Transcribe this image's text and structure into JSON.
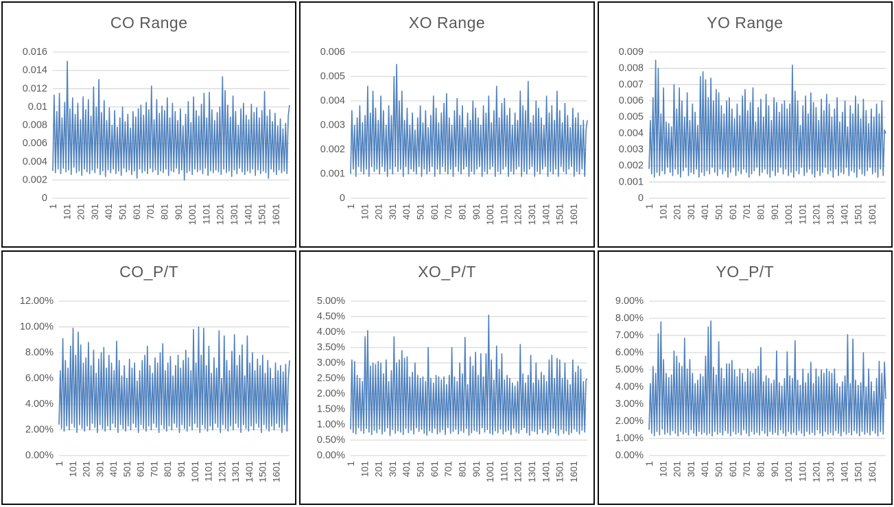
{
  "styles": {
    "series_color": "#4F81BD",
    "gridline_color": "#D9D9D9",
    "axis_text_color": "#595959",
    "title_color": "#595959",
    "panel_border_color": "#0a0a0a",
    "background": "#ffffff"
  },
  "chart_data": [
    {
      "type": "line",
      "title": "CO Range",
      "ylim": [
        0,
        0.016
      ],
      "ytick_step": 0.002,
      "ytick_labels": [
        "0.016",
        "0.014",
        "0.012",
        "0.01",
        "0.008",
        "0.006",
        "0.004",
        "0.002",
        "0"
      ],
      "x_labels": [
        "1",
        "101",
        "201",
        "301",
        "401",
        "501",
        "601",
        "701",
        "801",
        "901",
        "1001",
        "1101",
        "1201",
        "1301",
        "1401",
        "1501",
        "1601"
      ],
      "x_label_start": 1,
      "x_label_interval": 100,
      "x_total": 1700,
      "value_unit": 0.0001,
      "y_max_units": 160,
      "values": [
        30,
        113,
        28,
        95,
        32,
        115,
        27,
        88,
        33,
        105,
        29,
        150,
        31,
        98,
        26,
        110,
        34,
        92,
        28,
        104,
        30,
        86,
        25,
        111,
        32,
        97,
        29,
        108,
        27,
        90,
        31,
        122,
        28,
        100,
        33,
        130,
        26,
        94,
        30,
        107,
        24,
        85,
        31,
        99,
        28,
        80,
        32,
        96,
        27,
        78,
        30,
        88,
        25,
        100,
        33,
        84,
        29,
        92,
        31,
        77,
        26,
        95,
        30,
        89,
        22,
        98,
        32,
        102,
        28,
        91,
        30,
        105,
        27,
        97,
        33,
        123,
        29,
        86,
        31,
        108,
        26,
        93,
        30,
        101,
        28,
        96,
        32,
        110,
        25,
        88,
        30,
        104,
        29,
        95,
        33,
        85,
        27,
        98,
        31,
        79,
        20,
        92,
        28,
        106,
        30,
        83,
        26,
        111,
        32,
        96,
        29,
        90,
        31,
        103,
        27,
        115,
        33,
        88,
        25,
        116,
        30,
        97,
        28,
        85,
        31,
        94,
        29,
        100,
        26,
        133,
        32,
        118,
        28,
        102,
        30,
        89,
        24,
        112,
        31,
        95,
        27,
        80,
        33,
        98,
        29,
        104,
        26,
        91,
        30,
        86,
        28,
        103,
        32,
        94,
        25,
        99,
        31,
        88,
        27,
        96,
        30,
        117,
        28,
        90,
        22,
        97,
        32,
        84,
        29,
        93,
        26,
        79,
        31,
        87,
        28,
        76,
        30,
        82,
        27,
        90,
        102
      ]
    },
    {
      "type": "line",
      "title": "XO Range",
      "ylim": [
        0,
        0.006
      ],
      "ytick_step": 0.001,
      "ytick_labels": [
        "0.006",
        "0.005",
        "0.004",
        "0.003",
        "0.002",
        "0.001",
        "0"
      ],
      "x_labels": [
        "1",
        "101",
        "201",
        "301",
        "401",
        "501",
        "601",
        "701",
        "801",
        "901",
        "1001",
        "1101",
        "1201",
        "1301",
        "1401",
        "1501",
        "1601"
      ],
      "x_label_start": 1,
      "x_label_interval": 100,
      "x_total": 1700,
      "value_unit": 0.0001,
      "y_max_units": 60,
      "values": [
        10,
        36,
        12,
        30,
        9,
        33,
        13,
        38,
        11,
        31,
        10,
        34,
        12,
        46,
        9,
        35,
        13,
        44,
        11,
        37,
        12,
        32,
        10,
        42,
        13,
        36,
        11,
        30,
        9,
        38,
        12,
        34,
        10,
        50,
        13,
        55,
        11,
        40,
        12,
        44,
        9,
        32,
        13,
        37,
        10,
        30,
        12,
        35,
        11,
        28,
        10,
        33,
        13,
        38,
        9,
        31,
        12,
        36,
        10,
        29,
        11,
        34,
        13,
        42,
        9,
        37,
        12,
        31,
        10,
        35,
        13,
        39,
        11,
        43,
        10,
        33,
        12,
        30,
        9,
        36,
        13,
        41,
        11,
        34,
        10,
        38,
        12,
        29,
        13,
        35,
        9,
        32,
        11,
        40,
        10,
        37,
        12,
        33,
        13,
        30,
        9,
        38,
        11,
        35,
        10,
        42,
        12,
        31,
        13,
        36,
        9,
        46,
        11,
        33,
        10,
        39,
        12,
        41,
        13,
        34,
        9,
        37,
        11,
        30,
        10,
        35,
        12,
        32,
        13,
        44,
        9,
        38,
        11,
        36,
        10,
        48,
        12,
        31,
        13,
        34,
        9,
        40,
        11,
        37,
        10,
        33,
        12,
        30,
        13,
        42,
        9,
        35,
        11,
        38,
        10,
        32,
        12,
        44,
        9,
        36,
        13,
        31,
        11,
        39,
        10,
        34,
        12,
        29,
        13,
        37,
        9,
        33,
        11,
        35,
        10,
        30,
        12,
        32,
        9,
        28,
        32
      ]
    },
    {
      "type": "line",
      "title": "YO Range",
      "ylim": [
        0,
        0.009
      ],
      "ytick_step": 0.001,
      "ytick_labels": [
        "0.009",
        "0.008",
        "0.007",
        "0.006",
        "0.005",
        "0.004",
        "0.003",
        "0.002",
        "0.001",
        "0"
      ],
      "x_labels": [
        "1",
        "101",
        "201",
        "301",
        "401",
        "501",
        "601",
        "701",
        "801",
        "901",
        "1001",
        "1101",
        "1201",
        "1301",
        "1401",
        "1501",
        "1601"
      ],
      "x_label_start": 1,
      "x_label_interval": 100,
      "x_total": 1700,
      "value_unit": 0.0001,
      "y_max_units": 90,
      "values": [
        18,
        48,
        15,
        62,
        13,
        85,
        16,
        80,
        14,
        52,
        17,
        68,
        15,
        47,
        19,
        46,
        16,
        44,
        14,
        70,
        18,
        55,
        15,
        68,
        13,
        60,
        17,
        50,
        19,
        65,
        14,
        48,
        16,
        58,
        15,
        53,
        18,
        45,
        13,
        75,
        16,
        78,
        14,
        73,
        17,
        62,
        15,
        74,
        19,
        60,
        16,
        67,
        14,
        65,
        18,
        57,
        15,
        52,
        17,
        60,
        13,
        62,
        16,
        55,
        19,
        49,
        14,
        58,
        17,
        51,
        15,
        63,
        18,
        67,
        16,
        54,
        13,
        59,
        15,
        68,
        17,
        47,
        19,
        56,
        14,
        61,
        16,
        50,
        18,
        64,
        15,
        57,
        13,
        48,
        17,
        62,
        14,
        59,
        16,
        53,
        19,
        58,
        15,
        60,
        18,
        55,
        14,
        58,
        16,
        82,
        13,
        66,
        17,
        60,
        15,
        45,
        19,
        57,
        14,
        63,
        16,
        52,
        18,
        65,
        15,
        59,
        13,
        56,
        17,
        48,
        14,
        61,
        16,
        54,
        19,
        64,
        15,
        58,
        17,
        50,
        13,
        55,
        18,
        62,
        14,
        47,
        16,
        53,
        15,
        60,
        19,
        44,
        14,
        57,
        17,
        52,
        16,
        63,
        13,
        58,
        18,
        49,
        15,
        61,
        14,
        54,
        17,
        46,
        19,
        55,
        15,
        50,
        16,
        58,
        13,
        52,
        18,
        60,
        14,
        42,
        40
      ]
    },
    {
      "type": "line",
      "title": "CO_P/T",
      "ylim_percent": [
        0,
        12
      ],
      "ytick_step_percent": 2,
      "ytick_labels": [
        "12.00%",
        "10.00%",
        "8.00%",
        "6.00%",
        "4.00%",
        "2.00%",
        "0.00%"
      ],
      "x_labels": [
        "1",
        "101",
        "201",
        "301",
        "401",
        "501",
        "601",
        "701",
        "801",
        "901",
        "1001",
        "1101",
        "1201",
        "1301",
        "1401",
        "1501",
        "1601"
      ],
      "x_label_start": 1,
      "x_label_interval": 100,
      "x_total": 1700,
      "value_unit_percent": 0.1,
      "y_max_units": 120,
      "values": [
        24,
        66,
        21,
        91,
        19,
        74,
        23,
        68,
        20,
        85,
        25,
        99,
        22,
        78,
        18,
        96,
        24,
        86,
        21,
        72,
        19,
        76,
        23,
        88,
        20,
        70,
        25,
        82,
        22,
        64,
        18,
        75,
        24,
        80,
        21,
        84,
        19,
        68,
        23,
        78,
        20,
        72,
        25,
        66,
        22,
        89,
        18,
        74,
        24,
        62,
        21,
        70,
        19,
        60,
        23,
        75,
        20,
        68,
        25,
        72,
        22,
        58,
        18,
        66,
        24,
        74,
        21,
        78,
        19,
        85,
        23,
        70,
        20,
        64,
        25,
        76,
        22,
        72,
        18,
        80,
        24,
        87,
        21,
        66,
        19,
        72,
        23,
        77,
        20,
        62,
        25,
        70,
        22,
        78,
        18,
        68,
        24,
        74,
        21,
        82,
        19,
        76,
        23,
        66,
        20,
        98,
        25,
        72,
        22,
        100,
        18,
        78,
        24,
        99,
        21,
        70,
        19,
        85,
        23,
        64,
        20,
        76,
        25,
        68,
        22,
        97,
        18,
        60,
        24,
        93,
        21,
        74,
        19,
        66,
        23,
        81,
        20,
        94,
        25,
        70,
        22,
        78,
        18,
        86,
        24,
        62,
        21,
        93,
        19,
        72,
        23,
        80,
        20,
        66,
        25,
        75,
        22,
        70,
        18,
        78,
        24,
        64,
        21,
        74,
        19,
        68,
        23,
        60,
        20,
        72,
        25,
        66,
        22,
        70,
        18,
        65,
        24,
        71,
        19,
        58,
        74
      ]
    },
    {
      "type": "line",
      "title": "XO_P/T",
      "ylim_percent": [
        0,
        5
      ],
      "ytick_step_percent": 0.5,
      "ytick_labels": [
        "5.00%",
        "4.50%",
        "4.00%",
        "3.50%",
        "3.00%",
        "2.50%",
        "2.00%",
        "1.50%",
        "1.00%",
        "0.50%",
        "0.00%"
      ],
      "x_labels": [
        "1",
        "101",
        "201",
        "301",
        "401",
        "501",
        "601",
        "701",
        "801",
        "901",
        "1001",
        "1101",
        "1201",
        "1301",
        "1401",
        "1501",
        "1601"
      ],
      "x_label_start": 1,
      "x_label_interval": 100,
      "x_total": 1700,
      "value_unit_percent": 0.01,
      "y_max_units": 500,
      "values": [
        85,
        310,
        75,
        305,
        70,
        260,
        90,
        250,
        80,
        240,
        72,
        385,
        88,
        405,
        76,
        290,
        68,
        300,
        82,
        295,
        74,
        305,
        86,
        300,
        70,
        265,
        78,
        310,
        90,
        240,
        65,
        275,
        84,
        385,
        72,
        300,
        80,
        310,
        76,
        340,
        68,
        315,
        88,
        320,
        74,
        255,
        82,
        270,
        70,
        300,
        90,
        260,
        78,
        250,
        85,
        255,
        72,
        240,
        66,
        350,
        80,
        250,
        74,
        235,
        88,
        260,
        70,
        255,
        76,
        245,
        84,
        255,
        68,
        230,
        90,
        260,
        72,
        350,
        78,
        255,
        85,
        240,
        70,
        300,
        80,
        265,
        75,
        383,
        88,
        230,
        66,
        320,
        74,
        290,
        82,
        335,
        78,
        260,
        70,
        330,
        90,
        255,
        76,
        330,
        84,
        455,
        72,
        310,
        68,
        245,
        80,
        355,
        74,
        280,
        86,
        330,
        70,
        245,
        78,
        260,
        82,
        250,
        68,
        235,
        88,
        225,
        76,
        240,
        72,
        360,
        84,
        265,
        90,
        235,
        74,
        260,
        66,
        325,
        80,
        235,
        78,
        300,
        70,
        245,
        86,
        270,
        74,
        260,
        82,
        240,
        68,
        310,
        76,
        325,
        88,
        250,
        72,
        315,
        66,
        310,
        84,
        250,
        72,
        300,
        80,
        245,
        68,
        230,
        74,
        310,
        86,
        270,
        78,
        290,
        70,
        280,
        82,
        240,
        76,
        245,
        248
      ]
    },
    {
      "type": "line",
      "title": "YO_P/T",
      "ylim_percent": [
        0,
        9
      ],
      "ytick_step_percent": 1,
      "ytick_labels": [
        "9.00%",
        "8.00%",
        "7.00%",
        "6.00%",
        "5.00%",
        "4.00%",
        "3.00%",
        "2.00%",
        "1.00%",
        "0.00%"
      ],
      "x_labels": [
        "1",
        "101",
        "201",
        "301",
        "401",
        "501",
        "601",
        "701",
        "801",
        "901",
        "1001",
        "1101",
        "1201",
        "1301",
        "1401",
        "1501",
        "1601"
      ],
      "x_label_start": 1,
      "x_label_interval": 100,
      "x_total": 1700,
      "value_unit_percent": 0.01,
      "y_max_units": 900,
      "values": [
        150,
        420,
        130,
        520,
        115,
        480,
        140,
        710,
        120,
        780,
        155,
        560,
        125,
        480,
        135,
        455,
        120,
        470,
        145,
        610,
        130,
        580,
        115,
        540,
        140,
        520,
        125,
        685,
        135,
        505,
        120,
        560,
        150,
        480,
        130,
        420,
        115,
        440,
        140,
        475,
        125,
        460,
        135,
        580,
        120,
        750,
        130,
        785,
        115,
        515,
        140,
        470,
        125,
        665,
        135,
        510,
        120,
        450,
        145,
        535,
        130,
        535,
        115,
        555,
        140,
        500,
        125,
        460,
        135,
        505,
        120,
        480,
        150,
        430,
        130,
        505,
        115,
        490,
        140,
        480,
        125,
        505,
        135,
        520,
        120,
        630,
        145,
        430,
        130,
        465,
        115,
        450,
        140,
        420,
        125,
        440,
        135,
        610,
        120,
        425,
        150,
        405,
        130,
        450,
        115,
        605,
        140,
        465,
        125,
        450,
        135,
        670,
        120,
        440,
        145,
        410,
        130,
        505,
        115,
        425,
        140,
        480,
        125,
        545,
        135,
        420,
        120,
        505,
        150,
        460,
        130,
        500,
        115,
        480,
        140,
        505,
        125,
        490,
        135,
        480,
        120,
        505,
        145,
        420,
        130,
        400,
        115,
        430,
        140,
        465,
        125,
        705,
        135,
        420,
        120,
        680,
        145,
        440,
        130,
        410,
        115,
        425,
        140,
        600,
        125,
        400,
        135,
        505,
        120,
        430,
        145,
        375,
        130,
        450,
        115,
        550,
        140,
        480,
        125,
        545,
        330
      ]
    }
  ]
}
